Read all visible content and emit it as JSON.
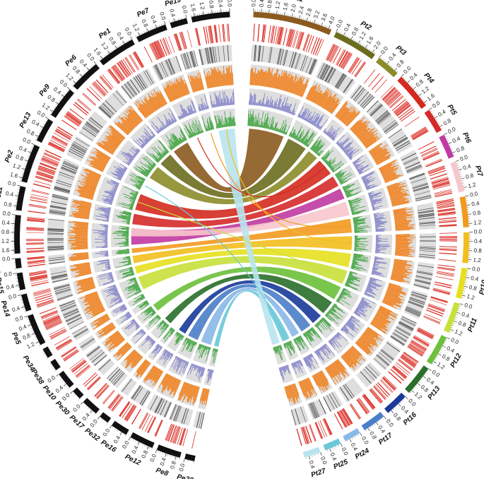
{
  "chart_data": {
    "type": "circos",
    "left_genome": [
      {
        "name": "Pe4",
        "ticks": [
          "0.0",
          "0.4",
          "0.8",
          "1.2",
          "1.6"
        ]
      },
      {
        "name": "Pe19",
        "ticks": [
          "0.0",
          "0.4"
        ]
      },
      {
        "name": "Pe7",
        "ticks": [
          "0.0",
          "0.4",
          "0.8",
          "1.2"
        ]
      },
      {
        "name": "Pe1",
        "ticks": [
          "0.0",
          "0.4",
          "0.8",
          "1.2",
          "1.6"
        ]
      },
      {
        "name": "Pe6",
        "ticks": [
          "0.0",
          "0.4",
          "0.8",
          "1.2"
        ]
      },
      {
        "name": "Pe9",
        "ticks": [
          "0.0",
          "0.4",
          "0.8",
          "1.2"
        ]
      },
      {
        "name": "Pe13",
        "ticks": [
          "0.0",
          "0.4",
          "0.8"
        ]
      },
      {
        "name": "Pe2",
        "ticks": [
          "0.0",
          "0.4",
          "0.8",
          "1.2",
          "1.6"
        ]
      },
      {
        "name": "Pe11",
        "ticks": [
          "0.0",
          "0.4",
          "0.8"
        ]
      },
      {
        "name": "Pe3",
        "ticks": [
          "0.0",
          "0.4",
          "0.8",
          "1.2",
          "1.6"
        ]
      },
      {
        "name": "Pe20",
        "ticks": [
          "0.0"
        ]
      },
      {
        "name": "Pe15",
        "ticks": [
          "0.0",
          "0.4"
        ]
      },
      {
        "name": "Pe14",
        "ticks": [
          "0.0",
          "0.4"
        ]
      },
      {
        "name": "Pe5",
        "ticks": [
          "0.0",
          "0.4",
          "0.8",
          "1.2"
        ]
      },
      {
        "name": "Pe34",
        "ticks": []
      },
      {
        "name": "Pe38",
        "ticks": []
      },
      {
        "name": "Pe10",
        "ticks": [
          "0.0",
          "0.4"
        ]
      },
      {
        "name": "Pe30",
        "ticks": [
          "0.0"
        ]
      },
      {
        "name": "Pe17",
        "ticks": [
          "0.0",
          "0.4"
        ]
      },
      {
        "name": "Pe32",
        "ticks": [
          "0.0"
        ]
      },
      {
        "name": "Pe16",
        "ticks": [
          "0.0",
          "0.4"
        ]
      },
      {
        "name": "Pe12",
        "ticks": [
          "0.0",
          "0.4",
          "0.8"
        ]
      },
      {
        "name": "Pe8",
        "ticks": [
          "0.0",
          "0.4",
          "0.8"
        ]
      },
      {
        "name": "Pe28",
        "ticks": [
          "0.0"
        ]
      }
    ],
    "right_genome": [
      {
        "name": "Pt1",
        "color": "#8b5a1e",
        "ticks": [
          "0.0",
          "0.4",
          "0.8",
          "1.2",
          "1.6",
          "2.0",
          "2.4",
          "2.8",
          "3.2",
          "3.6",
          "4.0"
        ]
      },
      {
        "name": "Pt2",
        "color": "#6b6d1e",
        "ticks": [
          "0.0",
          "0.4",
          "0.8",
          "1.2",
          "1.6",
          "2.0"
        ]
      },
      {
        "name": "Pt3",
        "color": "#8b8c2a",
        "ticks": [
          "0.0",
          "0.4",
          "0.8"
        ]
      },
      {
        "name": "Pt4",
        "color": "#d42a1f",
        "ticks": [
          "0.0",
          "0.4",
          "0.8",
          "1.2",
          "1.6"
        ]
      },
      {
        "name": "Pt5",
        "color": "#d52a2a",
        "ticks": [
          "0.0",
          "0.4",
          "0.8"
        ]
      },
      {
        "name": "Pt6",
        "color": "#c03aa0",
        "ticks": [
          "0.0",
          "0.4",
          "0.8"
        ]
      },
      {
        "name": "Pt7",
        "color": "#f7c6cc",
        "ticks": [
          "0.0",
          "0.4",
          "0.8",
          "1.2"
        ]
      },
      {
        "name": "Pt8",
        "color": "#f29a1e",
        "ticks": [
          "0.0",
          "0.4",
          "0.8",
          "1.2"
        ]
      },
      {
        "name": "Pt9",
        "color": "#f2be1e",
        "ticks": [
          "0.0",
          "0.4",
          "0.8",
          "1.2"
        ]
      },
      {
        "name": "Pt10",
        "color": "#e6e01e",
        "ticks": [
          "0.0",
          "0.4",
          "0.8",
          "1.2"
        ]
      },
      {
        "name": "Pt11",
        "color": "#c8e03a",
        "ticks": [
          "0.0",
          "0.4",
          "0.8",
          "1.2"
        ]
      },
      {
        "name": "Pt12",
        "color": "#6cc03a",
        "ticks": [
          "0.0",
          "0.4",
          "0.8",
          "1.2"
        ]
      },
      {
        "name": "Pt13",
        "color": "#2a6e2a",
        "ticks": [
          "0.0",
          "0.4",
          "0.8",
          "1.2"
        ]
      },
      {
        "name": "Pt16",
        "color": "#1a3a9a",
        "ticks": [
          "0.0",
          "0.4",
          "0.8"
        ]
      },
      {
        "name": "Pt17",
        "color": "#4a7ec8",
        "ticks": [
          "0.0",
          "0.4",
          "0.8"
        ]
      },
      {
        "name": "Pt24",
        "color": "#8ab8e8",
        "ticks": [
          "0.0",
          "0.4"
        ]
      },
      {
        "name": "Pt25",
        "color": "#6ac8d8",
        "ticks": [
          "0.0",
          "0.4"
        ]
      },
      {
        "name": "Pt27",
        "color": "#b8e4ee",
        "ticks": [
          "0.0",
          "0.4"
        ]
      }
    ],
    "track_colors": {
      "outer_ideogram_left": "#111111",
      "gene_density": "#d9261c",
      "repeat_density": "#555555",
      "gc_content": "#f0872a",
      "expression": "#8c8ccc",
      "snp_density": "#4aa84a",
      "track_background": "#dedede"
    },
    "synteny_links": [
      {
        "from": "Pe1",
        "to": "Pt1",
        "color": "#8b5a1e"
      },
      {
        "from": "Pe6",
        "to": "Pt2",
        "color": "#6b6d1e"
      },
      {
        "from": "Pe9",
        "to": "Pt3",
        "color": "#8b8c2a"
      },
      {
        "from": "Pe2",
        "to": "Pt4",
        "color": "#d42a1f"
      },
      {
        "from": "Pe11",
        "to": "Pt5",
        "color": "#d52a2a"
      },
      {
        "from": "Pe3",
        "to": "Pt6",
        "color": "#c03aa0"
      },
      {
        "from": "Pe3",
        "to": "Pt7",
        "color": "#f7c6cc"
      },
      {
        "from": "Pe20",
        "to": "Pt8",
        "color": "#f29a1e"
      },
      {
        "from": "Pe15",
        "to": "Pt9",
        "color": "#f2be1e"
      },
      {
        "from": "Pe14",
        "to": "Pt10",
        "color": "#e6e01e"
      },
      {
        "from": "Pe5",
        "to": "Pt11",
        "color": "#c8e03a"
      },
      {
        "from": "Pe10",
        "to": "Pt12",
        "color": "#6cc03a"
      },
      {
        "from": "Pe17",
        "to": "Pt13",
        "color": "#2a6e2a"
      },
      {
        "from": "Pe16",
        "to": "Pt16",
        "color": "#1a3a9a"
      },
      {
        "from": "Pe12",
        "to": "Pt17",
        "color": "#4a7ec8"
      },
      {
        "from": "Pe8",
        "to": "Pt24",
        "color": "#8ab8e8"
      },
      {
        "from": "Pe28",
        "to": "Pt25",
        "color": "#6ac8d8"
      },
      {
        "from": "Pe4",
        "to": "Pt27",
        "color": "#b8e4ee"
      }
    ]
  }
}
